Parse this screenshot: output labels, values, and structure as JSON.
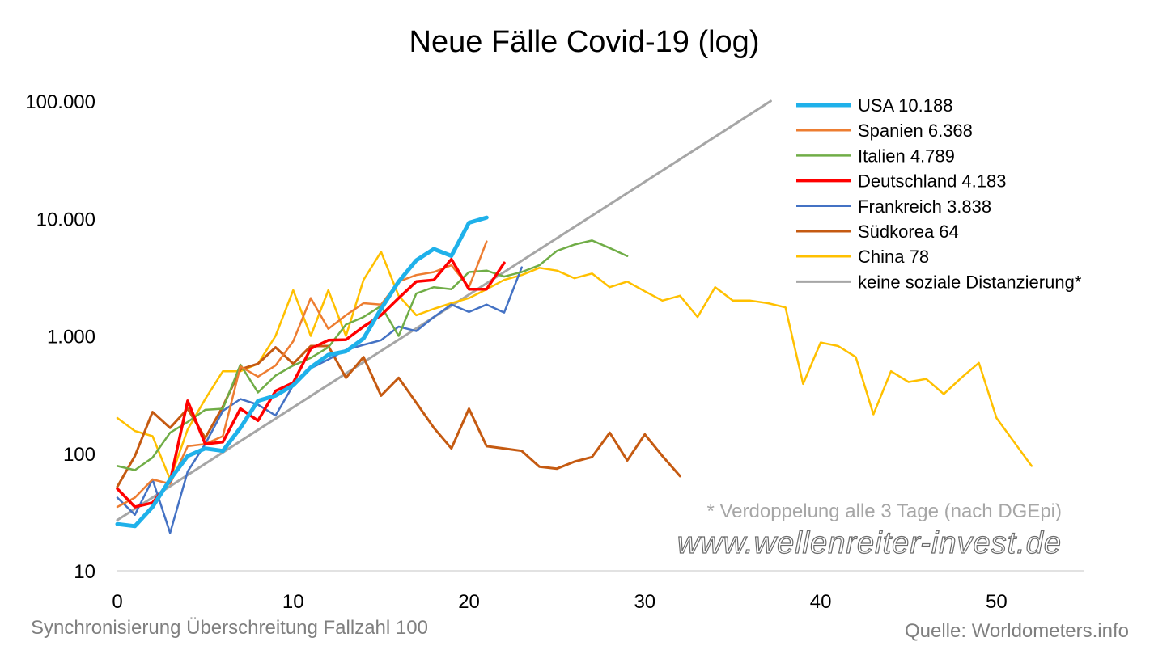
{
  "chart_data": {
    "type": "line",
    "title": "Neue Fälle Covid-19 (log)",
    "xlabel": "Synchronisierung Überschreitung Fallzahl 100",
    "ylabel": "",
    "xlim": [
      0,
      55
    ],
    "ylim": [
      10,
      100000
    ],
    "y_scale": "log",
    "x_ticks": [
      {
        "value": 0,
        "label": "0"
      },
      {
        "value": 10,
        "label": "10"
      },
      {
        "value": 20,
        "label": "20"
      },
      {
        "value": 30,
        "label": "30"
      },
      {
        "value": 40,
        "label": "40"
      },
      {
        "value": 50,
        "label": "50"
      }
    ],
    "y_ticks": [
      {
        "value": 10,
        "label": "10"
      },
      {
        "value": 100,
        "label": "100"
      },
      {
        "value": 1000,
        "label": "1.000"
      },
      {
        "value": 10000,
        "label": "10.000"
      },
      {
        "value": 100000,
        "label": "100.000"
      }
    ],
    "grid": false,
    "legend_position": "top-right",
    "series": [
      {
        "name": "USA 10.188",
        "color": "#1fb1ea",
        "width": 5,
        "values": [
          25,
          24,
          35,
          60,
          95,
          110,
          105,
          165,
          280,
          310,
          380,
          540,
          690,
          740,
          950,
          1700,
          2900,
          4400,
          5500,
          4800,
          9200,
          10188
        ]
      },
      {
        "name": "Spanien 6.368",
        "color": "#ed7d31",
        "width": 2.5,
        "values": [
          35,
          42,
          60,
          55,
          115,
          120,
          140,
          550,
          450,
          560,
          900,
          2100,
          1150,
          1500,
          1900,
          1850,
          2900,
          3300,
          3500,
          4000,
          2600,
          6368
        ]
      },
      {
        "name": "Italien 4.789",
        "color": "#70ad47",
        "width": 2.5,
        "values": [
          78,
          72,
          92,
          150,
          185,
          235,
          240,
          570,
          330,
          460,
          560,
          650,
          800,
          1250,
          1450,
          1800,
          1000,
          2300,
          2600,
          2500,
          3500,
          3600,
          3200,
          3500,
          4000,
          5300,
          6000,
          6500,
          5600,
          4789
        ]
      },
      {
        "name": "Deutschland 4.183",
        "color": "#ff0000",
        "width": 3.5,
        "values": [
          50,
          35,
          38,
          58,
          280,
          120,
          125,
          240,
          190,
          340,
          400,
          780,
          920,
          930,
          1200,
          1500,
          2100,
          2900,
          3000,
          4500,
          2500,
          2500,
          4183
        ]
      },
      {
        "name": "Frankreich 3.838",
        "color": "#4472c4",
        "width": 2.5,
        "values": [
          42,
          30,
          60,
          21,
          70,
          120,
          230,
          290,
          260,
          210,
          380,
          530,
          630,
          760,
          840,
          920,
          1200,
          1100,
          1450,
          1850,
          1600,
          1850,
          1580,
          3838
        ]
      },
      {
        "name": "Südkorea 64",
        "color": "#c55a11",
        "width": 3,
        "values": [
          52,
          95,
          225,
          165,
          240,
          135,
          250,
          520,
          580,
          800,
          580,
          820,
          820,
          440,
          660,
          310,
          440,
          270,
          165,
          110,
          240,
          115,
          110,
          105,
          77,
          74,
          85,
          93,
          150,
          87,
          145,
          95,
          64
        ]
      },
      {
        "name": "China 78",
        "color": "#ffc000",
        "width": 2.5,
        "values": [
          200,
          155,
          140,
          60,
          160,
          290,
          500,
          500,
          580,
          1000,
          2450,
          1000,
          2450,
          1000,
          3000,
          5200,
          2200,
          1500,
          1700,
          1900,
          2100,
          2500,
          3000,
          3300,
          3800,
          3600,
          3100,
          3400,
          2600,
          2900,
          2400,
          2000,
          2200,
          1450,
          2600,
          2000,
          2000,
          1900,
          1750,
          390,
          880,
          820,
          660,
          215,
          500,
          405,
          430,
          320,
          440,
          590,
          200,
          125,
          78
        ]
      },
      {
        "name": "keine soziale Distanzierung*",
        "color": "#a6a6a6",
        "width": 3,
        "x": [
          0,
          37.16
        ],
        "values": [
          27,
          100000
        ]
      }
    ],
    "annotation": "* Verdoppelung alle 3 Tage (nach DGEpi)",
    "source": "Quelle: Worldometers.info"
  },
  "watermark_text": "www.wellenreiter-invest.de"
}
